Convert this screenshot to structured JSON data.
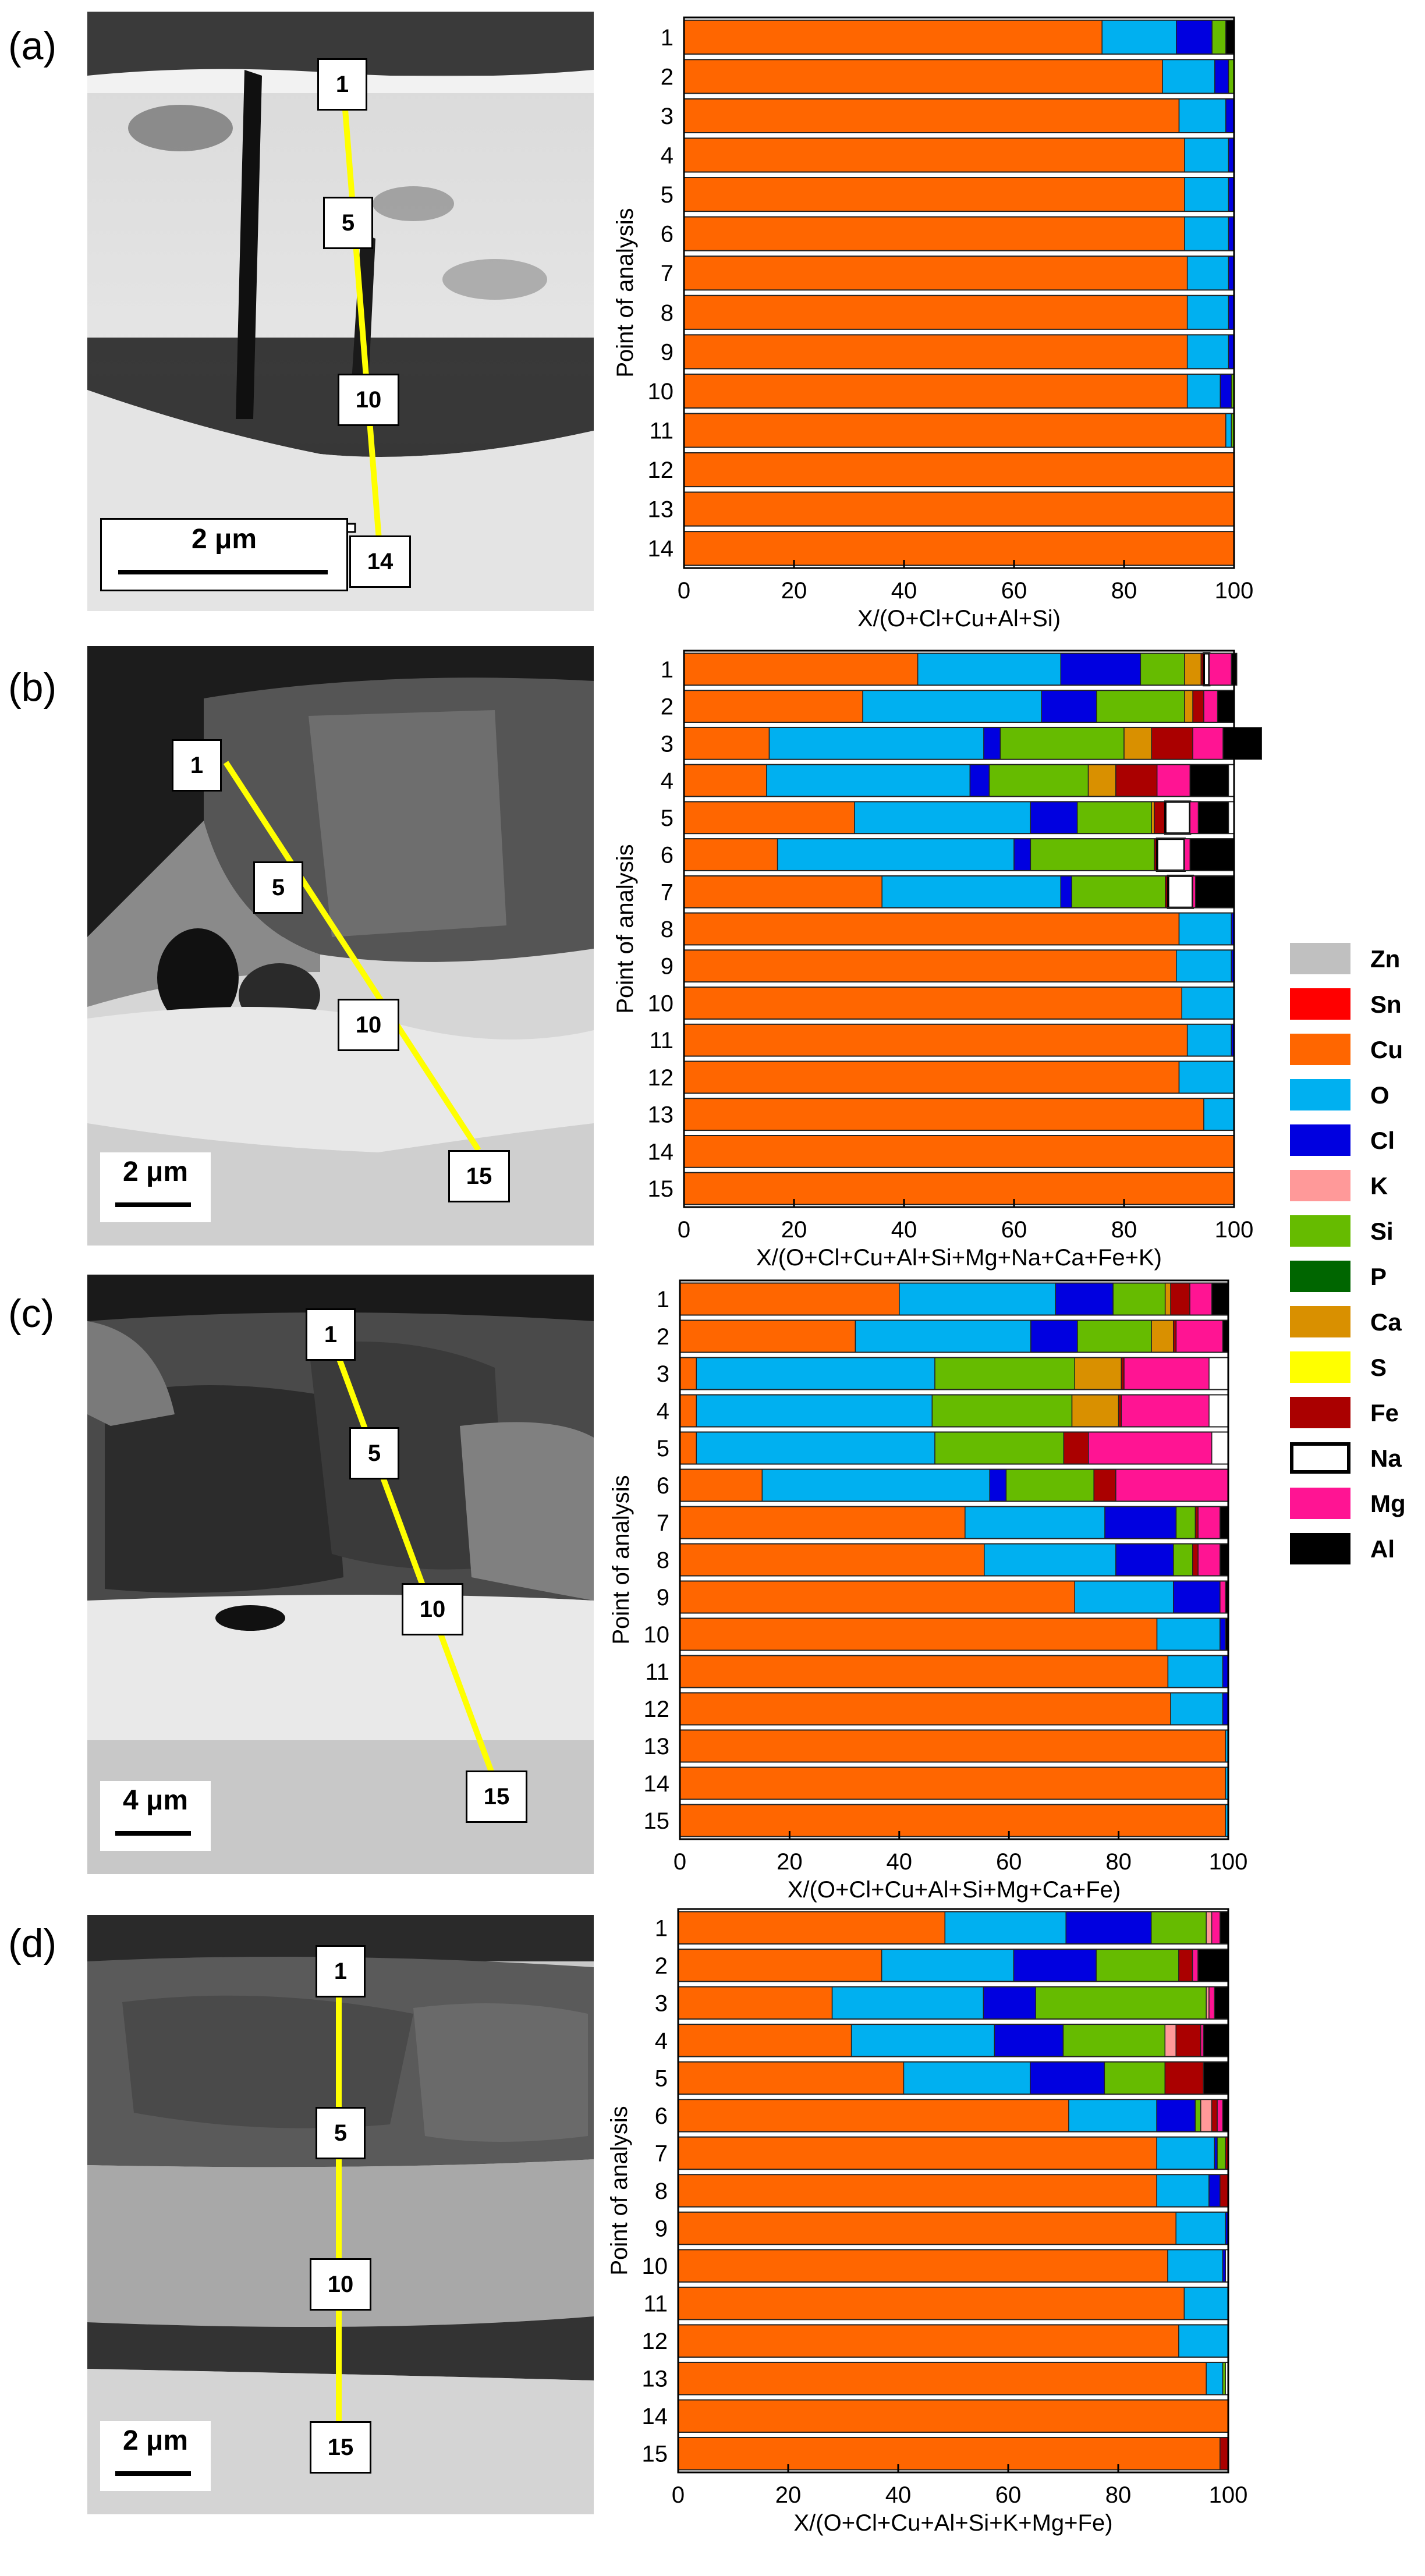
{
  "panels": [
    {
      "label": "(a)",
      "scalebar": "2 μm",
      "markers": [
        "1",
        "5",
        "10",
        "14"
      ]
    },
    {
      "label": "(b)",
      "scalebar": "2 μm",
      "markers": [
        "1",
        "5",
        "10",
        "15"
      ]
    },
    {
      "label": "(c)",
      "scalebar": "4 μm",
      "markers": [
        "1",
        "5",
        "10",
        "15"
      ]
    },
    {
      "label": "(d)",
      "scalebar": "2 μm",
      "markers": [
        "1",
        "5",
        "10",
        "15"
      ]
    }
  ],
  "legend": {
    "items": [
      {
        "name": "Zn",
        "color": "#c0c0c0"
      },
      {
        "name": "Sn",
        "color": "#ff0000"
      },
      {
        "name": "Cu",
        "color": "#ff6600"
      },
      {
        "name": "O",
        "color": "#00b0f0"
      },
      {
        "name": "Cl",
        "color": "#0000e0"
      },
      {
        "name": "K",
        "color": "#ff9999"
      },
      {
        "name": "Si",
        "color": "#66bb00"
      },
      {
        "name": "P",
        "color": "#006600"
      },
      {
        "name": "Ca",
        "color": "#d99000"
      },
      {
        "name": "S",
        "color": "#ffff00"
      },
      {
        "name": "Fe",
        "color": "#aa0000"
      },
      {
        "name": "Na",
        "color": "#ffffff"
      },
      {
        "name": "Mg",
        "color": "#ff1493"
      },
      {
        "name": "Al",
        "color": "#000000"
      }
    ]
  },
  "chart_data": [
    {
      "type": "bar",
      "orientation": "horizontal-stacked",
      "ylabel": "Point of analysis",
      "xlabel": "X/(O+Cl+Cu+Al+Si)",
      "xlim": [
        0,
        100
      ],
      "xticks": [
        "0",
        "20",
        "40",
        "60",
        "80",
        "100"
      ],
      "categories": [
        "1",
        "2",
        "3",
        "4",
        "5",
        "6",
        "7",
        "8",
        "9",
        "10",
        "11",
        "12",
        "13",
        "14"
      ],
      "series": [
        {
          "name": "Cu",
          "values": [
            76,
            87,
            90,
            91,
            91,
            91,
            91.5,
            91.5,
            91.5,
            91.5,
            98.5,
            100,
            100,
            100
          ]
        },
        {
          "name": "O",
          "values": [
            13.5,
            9.5,
            8.5,
            8,
            8,
            8,
            7.5,
            7.5,
            7.5,
            6,
            1,
            0,
            0,
            0
          ]
        },
        {
          "name": "Cl",
          "values": [
            6.5,
            2.5,
            1.5,
            1,
            1,
            1,
            1,
            1,
            1,
            2,
            0,
            0,
            0,
            0
          ]
        },
        {
          "name": "Si",
          "values": [
            2.5,
            1,
            0,
            0,
            0,
            0,
            0,
            0,
            0,
            0.5,
            0.5,
            0,
            0,
            0
          ]
        },
        {
          "name": "Al",
          "values": [
            1.5,
            0,
            0,
            0,
            0,
            0,
            0,
            0,
            0,
            0,
            0,
            0,
            0,
            0
          ]
        }
      ]
    },
    {
      "type": "bar",
      "orientation": "horizontal-stacked",
      "ylabel": "Point of analysis",
      "xlabel": "X/(O+Cl+Cu+Al+Si+Mg+Na+Ca+Fe+K)",
      "xlim": [
        0,
        100
      ],
      "xticks": [
        "0",
        "20",
        "40",
        "60",
        "80",
        "100"
      ],
      "categories": [
        "1",
        "2",
        "3",
        "4",
        "5",
        "6",
        "7",
        "8",
        "9",
        "10",
        "11",
        "12",
        "13",
        "14",
        "15"
      ],
      "series": [
        {
          "name": "Cu",
          "values": [
            42.5,
            32.5,
            15.5,
            15,
            31,
            17,
            36,
            90,
            89.5,
            90.5,
            91.5,
            90,
            94.5,
            100,
            100
          ]
        },
        {
          "name": "O",
          "values": [
            26,
            32.5,
            39,
            37,
            32,
            43,
            32.5,
            9.5,
            10,
            9.5,
            8,
            10,
            5.5,
            0,
            0
          ]
        },
        {
          "name": "Cl",
          "values": [
            14.5,
            10,
            3,
            3.5,
            8.5,
            3,
            2,
            0.5,
            0.5,
            0,
            0.5,
            0,
            0,
            0,
            0
          ]
        },
        {
          "name": "Si",
          "values": [
            8,
            16,
            22.5,
            18,
            13.5,
            22.5,
            17,
            0,
            0,
            0,
            0,
            0,
            0,
            0,
            0
          ]
        },
        {
          "name": "Ca",
          "values": [
            3,
            1.5,
            5,
            5,
            0.5,
            0,
            0,
            0,
            0,
            0,
            0,
            0,
            0,
            0,
            0
          ]
        },
        {
          "name": "Fe",
          "values": [
            0.5,
            2,
            7.5,
            7.5,
            2,
            0.5,
            0.5,
            0,
            0,
            0,
            0,
            0,
            0,
            0,
            0
          ]
        },
        {
          "name": "Na",
          "values": [
            1,
            0,
            0,
            0,
            4.5,
            5,
            4.5,
            0,
            0,
            0,
            0,
            0,
            0,
            0,
            0
          ]
        },
        {
          "name": "Mg",
          "values": [
            4,
            2.5,
            5.5,
            6,
            1.5,
            1,
            0.5,
            0,
            0,
            0,
            0,
            0,
            0,
            0,
            0
          ]
        },
        {
          "name": "Al",
          "values": [
            1,
            3,
            7,
            7,
            5.5,
            8,
            7,
            0,
            0,
            0,
            0,
            0,
            0,
            0,
            0
          ]
        }
      ]
    },
    {
      "type": "bar",
      "orientation": "horizontal-stacked",
      "ylabel": "Point of analysis",
      "xlabel": "X/(O+Cl+Cu+Al+Si+Mg+Ca+Fe)",
      "xlim": [
        0,
        100
      ],
      "xticks": [
        "0",
        "20",
        "40",
        "60",
        "80",
        "100"
      ],
      "categories": [
        "1",
        "2",
        "3",
        "4",
        "5",
        "6",
        "7",
        "8",
        "9",
        "10",
        "11",
        "12",
        "13",
        "14",
        "15"
      ],
      "series": [
        {
          "name": "Cu",
          "values": [
            40,
            32,
            3,
            3,
            3,
            15,
            52,
            55.5,
            72,
            87,
            89,
            89.5,
            99.5,
            99.5,
            99.5
          ]
        },
        {
          "name": "O",
          "values": [
            28.5,
            32,
            43.5,
            43,
            43.5,
            41.5,
            25.5,
            24,
            18,
            11.5,
            10,
            9.5,
            0.5,
            0.5,
            0.5
          ]
        },
        {
          "name": "Cl",
          "values": [
            10.5,
            8.5,
            0,
            0,
            0,
            3,
            13,
            10.5,
            8.5,
            1,
            1,
            1,
            0,
            0,
            0
          ]
        },
        {
          "name": "Si",
          "values": [
            9.5,
            13.5,
            25.5,
            25.5,
            23.5,
            16,
            3.5,
            3.5,
            0,
            0,
            0,
            0,
            0,
            0,
            0
          ]
        },
        {
          "name": "Ca",
          "values": [
            1,
            4,
            8.5,
            8.5,
            0,
            0,
            0,
            0,
            0,
            0,
            0,
            0,
            0,
            0,
            0
          ]
        },
        {
          "name": "Fe",
          "values": [
            3.5,
            0.5,
            0.5,
            0.5,
            4.5,
            4,
            0.5,
            1,
            0,
            0,
            0,
            0,
            0,
            0,
            0
          ]
        },
        {
          "name": "Mg",
          "values": [
            4,
            8.5,
            15.5,
            16,
            22.5,
            20.5,
            4,
            4,
            1,
            0,
            0,
            0,
            0,
            0,
            0
          ]
        },
        {
          "name": "Al",
          "values": [
            3,
            1,
            0,
            0,
            0,
            0,
            1.5,
            1.5,
            0.5,
            0.5,
            0,
            0,
            0,
            0,
            0
          ]
        }
      ]
    },
    {
      "type": "bar",
      "orientation": "horizontal-stacked",
      "ylabel": "Point of analysis",
      "xlabel": "X/(O+Cl+Cu+Al+Si+K+Mg+Fe)",
      "xlim": [
        0,
        100
      ],
      "xticks": [
        "0",
        "20",
        "40",
        "60",
        "80",
        "100"
      ],
      "categories": [
        "1",
        "2",
        "3",
        "4",
        "5",
        "6",
        "7",
        "8",
        "9",
        "10",
        "11",
        "12",
        "13",
        "14",
        "15"
      ],
      "series": [
        {
          "name": "Cu",
          "values": [
            48.5,
            37,
            28,
            31.5,
            41,
            71,
            87,
            87,
            90.5,
            89,
            92,
            91,
            96,
            100,
            98.5
          ]
        },
        {
          "name": "O",
          "values": [
            22,
            24,
            27.5,
            26,
            23,
            16,
            10.5,
            9.5,
            9,
            10,
            8,
            9,
            3,
            0,
            0
          ]
        },
        {
          "name": "Cl",
          "values": [
            15.5,
            15,
            9.5,
            12.5,
            13.5,
            7,
            0.5,
            2,
            0.5,
            0.5,
            0,
            0,
            0,
            0,
            0
          ]
        },
        {
          "name": "Si",
          "values": [
            10,
            15,
            31,
            18.5,
            11,
            1,
            1.5,
            0,
            0,
            0,
            0,
            0,
            0.5,
            0,
            0
          ]
        },
        {
          "name": "K",
          "values": [
            1,
            0,
            0.5,
            2,
            0,
            2,
            0,
            0,
            0,
            0,
            0,
            0,
            0,
            0,
            0
          ]
        },
        {
          "name": "Fe",
          "values": [
            0,
            2.5,
            0,
            4.5,
            7,
            1,
            0.5,
            1.5,
            0,
            0,
            0,
            0,
            0,
            0,
            1.5
          ]
        },
        {
          "name": "Mg",
          "values": [
            1.5,
            1,
            1,
            0.5,
            0,
            1,
            0,
            0,
            0,
            0,
            0,
            0,
            0,
            0,
            0
          ]
        },
        {
          "name": "Al",
          "values": [
            1.5,
            5.5,
            2.5,
            4.5,
            4.5,
            1,
            0,
            0,
            0,
            0,
            0,
            0,
            0,
            0,
            0
          ]
        }
      ]
    }
  ]
}
